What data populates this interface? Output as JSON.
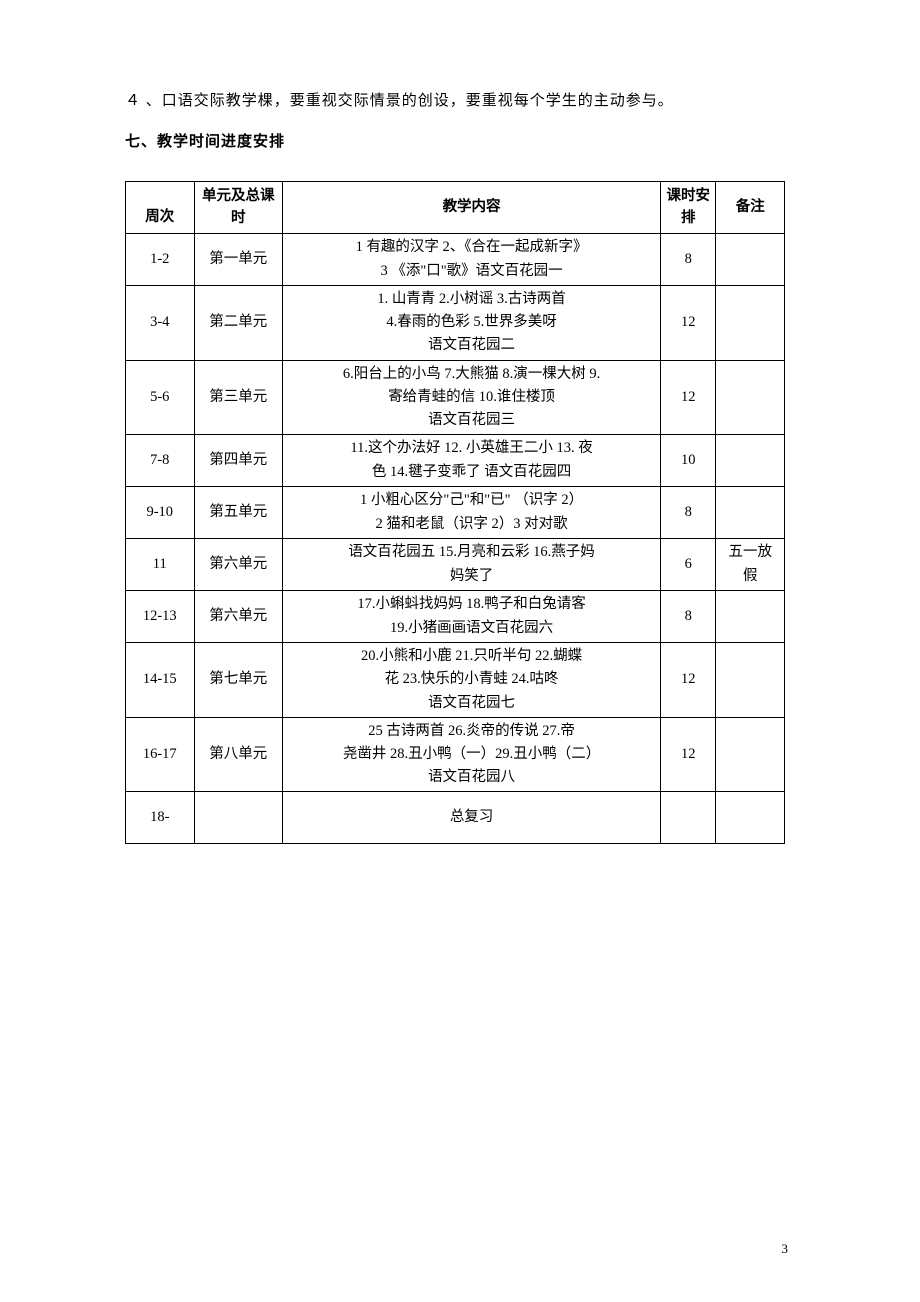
{
  "paragraph_4": "４ 、口语交际教学棵，要重视交际情景的创设，要重视每个学生的主动参与。",
  "section_heading": "七、教学时间进度安排",
  "table": {
    "headers": {
      "week": "周次",
      "unit": "单元及总课时",
      "content": "教学内容",
      "hours": "课时安排",
      "notes": "备注"
    },
    "rows": [
      {
        "week": "1-2",
        "unit": "第一单元",
        "content_l1": "1 有趣的汉字 2、《合在一起成新字》",
        "content_l2": "3 《添\"口\"歌》语文百花园一",
        "hours": "8",
        "notes": ""
      },
      {
        "week": "3-4",
        "unit": "第二单元",
        "content_l1": "1. 山青青 2.小树谣 3.古诗两首",
        "content_l2": "4.春雨的色彩 5.世界多美呀",
        "content_l3": "语文百花园二",
        "hours": "12",
        "notes": ""
      },
      {
        "week": "5-6",
        "unit": "第三单元",
        "content_l1": "6.阳台上的小鸟 7.大熊猫 8.演一棵大树 9.",
        "content_l2": "寄给青蛙的信 10.谁住楼顶",
        "content_l3": "语文百花园三",
        "hours": "12",
        "notes": ""
      },
      {
        "week": "7-8",
        "unit": "第四单元",
        "content_l1": "11.这个办法好 12. 小英雄王二小 13. 夜",
        "content_l2": "色 14.毽子变乖了    语文百花园四",
        "hours": "10",
        "notes": ""
      },
      {
        "week": "9-10",
        "unit": "第五单元",
        "content_l1": "1 小粗心区分\"己\"和\"已\"   （识字 2）",
        "content_l2": "2    猫和老鼠（识字 2）3    对对歌",
        "hours": "8",
        "notes": ""
      },
      {
        "week": "11",
        "unit": "第六单元",
        "content_l1": "语文百花园五 15.月亮和云彩 16.燕子妈",
        "content_l2": "妈笑了",
        "hours": "6",
        "notes_l1": "五一放",
        "notes_l2": "假"
      },
      {
        "week": "12-13",
        "unit": "第六单元",
        "content_l1": "17.小蝌蚪找妈妈 18.鸭子和白兔请客",
        "content_l2": "19.小猪画画语文百花园六",
        "hours": "8",
        "notes": ""
      },
      {
        "week": "14-15",
        "unit": "第七单元",
        "content_l1": "20.小熊和小鹿 21.只听半句 22.蝴蝶",
        "content_l2": "花 23.快乐的小青蛙 24.咕咚",
        "content_l3": "语文百花园七",
        "hours": "12",
        "notes": ""
      },
      {
        "week": "16-17",
        "unit": "第八单元",
        "content_l1": "25    古诗两首 26.炎帝的传说 27.帝",
        "content_l2": "尧凿井 28.丑小鸭（一）29.丑小鸭（二）",
        "content_l3": "语文百花园八",
        "hours": "12",
        "notes": ""
      },
      {
        "week": "18-",
        "unit": "",
        "content_l1": "总复习",
        "hours": "",
        "notes": ""
      }
    ]
  },
  "page_number": "3"
}
